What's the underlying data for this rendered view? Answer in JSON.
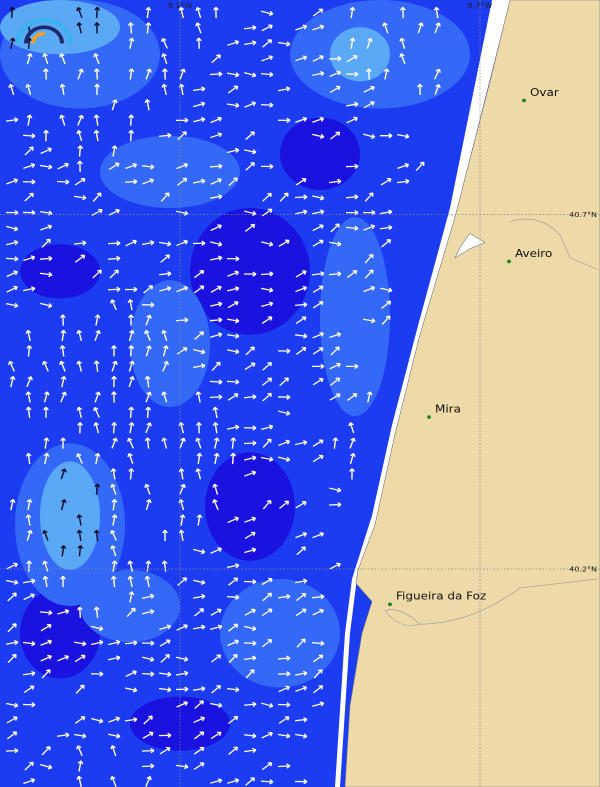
{
  "map": {
    "grid_labels": {
      "lon_west": "9.1°W",
      "lon_east": "8.7°W",
      "lat_north": "40.7°N",
      "lat_south": "40.2°N"
    },
    "places": [
      {
        "name": "Ovar"
      },
      {
        "name": "Aveiro"
      },
      {
        "name": "Mira"
      },
      {
        "name": "Figueira da Foz"
      }
    ]
  }
}
